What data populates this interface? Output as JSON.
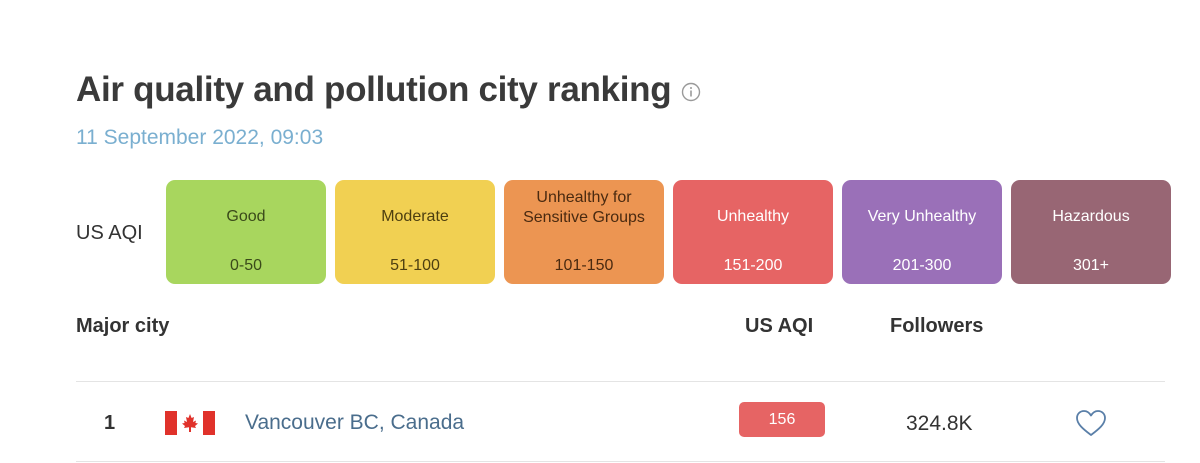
{
  "header": {
    "title": "Air quality and pollution city ranking",
    "timestamp": "11 September 2022, 09:03",
    "info_icon": "info-icon"
  },
  "legend": {
    "label": "US AQI",
    "levels": [
      {
        "name": "Good",
        "range": "0-50",
        "color": "#a8d65e",
        "text_color": "#3a4a1a"
      },
      {
        "name": "Moderate",
        "range": "51-100",
        "color": "#f1d052",
        "text_color": "#4d3f10"
      },
      {
        "name": "Unhealthy for Sensitive Groups",
        "range": "101-150",
        "color": "#ec9552",
        "text_color": "#4a2a10"
      },
      {
        "name": "Unhealthy",
        "range": "151-200",
        "color": "#e66464",
        "text_color": "#ffffff"
      },
      {
        "name": "Very Unhealthy",
        "range": "201-300",
        "color": "#9a70b8",
        "text_color": "#ffffff"
      },
      {
        "name": "Hazardous",
        "range": "301+",
        "color": "#986674",
        "text_color": "#ffffff"
      }
    ]
  },
  "table": {
    "columns": {
      "city": "Major city",
      "aqi": "US AQI",
      "followers": "Followers"
    },
    "rows": [
      {
        "rank": "1",
        "flag": "canada-flag-icon",
        "city": "Vancouver BC, Canada",
        "aqi": "156",
        "aqi_color": "#e66464",
        "followers": "324.8K",
        "favorite_icon": "heart-outline-icon"
      }
    ]
  }
}
